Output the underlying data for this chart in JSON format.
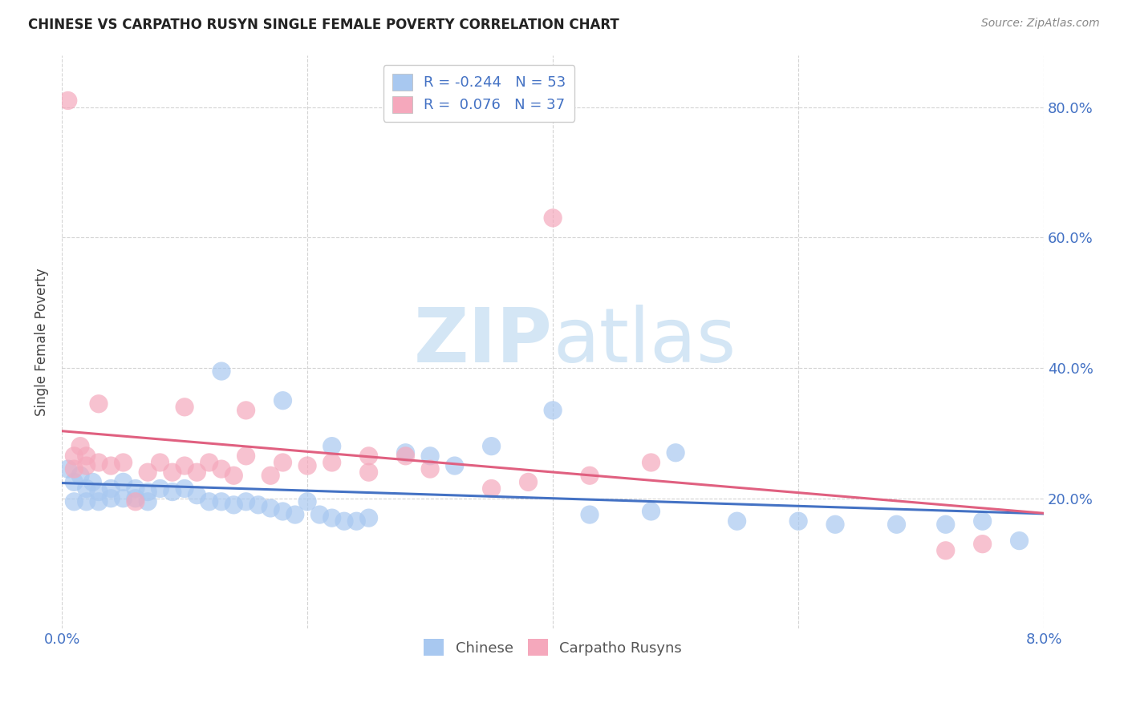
{
  "title": "CHINESE VS CARPATHO RUSYN SINGLE FEMALE POVERTY CORRELATION CHART",
  "source": "Source: ZipAtlas.com",
  "ylabel": "Single Female Poverty",
  "legend_label1": "Chinese",
  "legend_label2": "Carpatho Rusyns",
  "R1": -0.244,
  "N1": 53,
  "R2": 0.076,
  "N2": 37,
  "color_blue": "#a8c8f0",
  "color_pink": "#f5a8bc",
  "line_blue": "#4472c4",
  "line_pink": "#e06080",
  "tick_color": "#4472c4",
  "bg_color": "#ffffff",
  "grid_color": "#c8c8c8",
  "watermark_color": "#d0e4f4",
  "xlim": [
    0.0,
    0.08
  ],
  "ylim": [
    0.0,
    0.88
  ],
  "ytick_positions": [
    0.2,
    0.4,
    0.6,
    0.8
  ],
  "ytick_labels": [
    "20.0%",
    "40.0%",
    "60.0%",
    "80.0%"
  ],
  "xtick_positions": [
    0.0,
    0.02,
    0.04,
    0.06,
    0.08
  ],
  "xtick_labels": [
    "0.0%",
    "",
    "",
    "",
    "8.0%"
  ],
  "chinese_x": [
    0.0005,
    0.001,
    0.001,
    0.0015,
    0.002,
    0.002,
    0.0025,
    0.003,
    0.003,
    0.004,
    0.004,
    0.005,
    0.005,
    0.006,
    0.006,
    0.007,
    0.007,
    0.008,
    0.009,
    0.01,
    0.011,
    0.012,
    0.013,
    0.014,
    0.015,
    0.016,
    0.017,
    0.018,
    0.019,
    0.02,
    0.021,
    0.022,
    0.023,
    0.024,
    0.025,
    0.013,
    0.018,
    0.022,
    0.028,
    0.03,
    0.032,
    0.035,
    0.04,
    0.043,
    0.048,
    0.05,
    0.055,
    0.06,
    0.063,
    0.068,
    0.072,
    0.075,
    0.078
  ],
  "chinese_y": [
    0.245,
    0.225,
    0.195,
    0.235,
    0.215,
    0.195,
    0.225,
    0.21,
    0.195,
    0.215,
    0.2,
    0.225,
    0.2,
    0.215,
    0.2,
    0.21,
    0.195,
    0.215,
    0.21,
    0.215,
    0.205,
    0.195,
    0.195,
    0.19,
    0.195,
    0.19,
    0.185,
    0.18,
    0.175,
    0.195,
    0.175,
    0.17,
    0.165,
    0.165,
    0.17,
    0.395,
    0.35,
    0.28,
    0.27,
    0.265,
    0.25,
    0.28,
    0.335,
    0.175,
    0.18,
    0.27,
    0.165,
    0.165,
    0.16,
    0.16,
    0.16,
    0.165,
    0.135
  ],
  "rusyn_x": [
    0.0005,
    0.001,
    0.001,
    0.0015,
    0.002,
    0.002,
    0.003,
    0.003,
    0.004,
    0.005,
    0.006,
    0.007,
    0.008,
    0.009,
    0.01,
    0.011,
    0.012,
    0.013,
    0.014,
    0.015,
    0.017,
    0.018,
    0.02,
    0.022,
    0.025,
    0.028,
    0.03,
    0.035,
    0.038,
    0.043,
    0.04,
    0.048,
    0.072,
    0.075,
    0.01,
    0.015,
    0.025
  ],
  "rusyn_y": [
    0.81,
    0.265,
    0.245,
    0.28,
    0.265,
    0.25,
    0.345,
    0.255,
    0.25,
    0.255,
    0.195,
    0.24,
    0.255,
    0.24,
    0.25,
    0.24,
    0.255,
    0.245,
    0.235,
    0.265,
    0.235,
    0.255,
    0.25,
    0.255,
    0.24,
    0.265,
    0.245,
    0.215,
    0.225,
    0.235,
    0.63,
    0.255,
    0.12,
    0.13,
    0.34,
    0.335,
    0.265
  ]
}
